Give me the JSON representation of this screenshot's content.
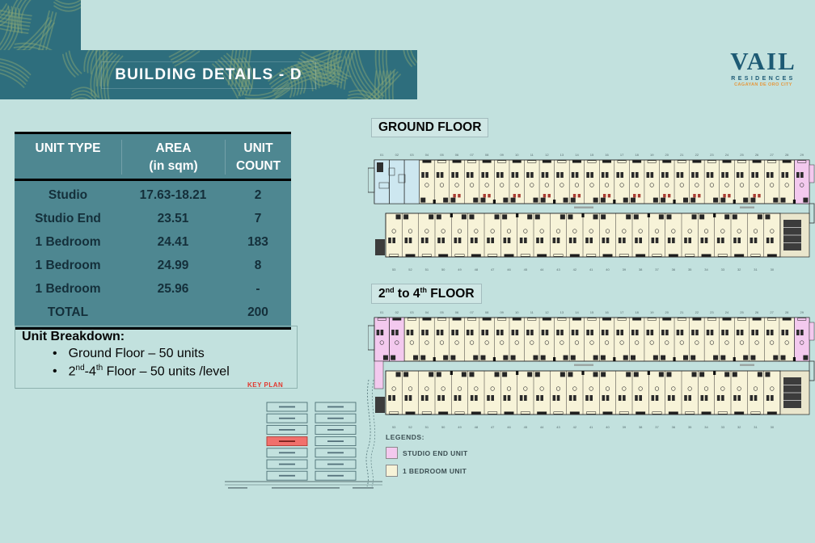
{
  "slide_title": "BUILDING DETAILS - D",
  "logo": {
    "brand": "VAIL",
    "sub": "RESIDENCES",
    "city": "CAGAYAN DE ORO CITY"
  },
  "unit_table": {
    "headers": [
      {
        "line1": "UNIT TYPE",
        "line2": ""
      },
      {
        "line1": "AREA",
        "line2": "(in sqm)"
      },
      {
        "line1": "UNIT",
        "line2": "COUNT"
      }
    ],
    "rows": [
      {
        "type": "Studio",
        "area": "17.63-18.21",
        "count": "2"
      },
      {
        "type": "Studio End",
        "area": "23.51",
        "count": "7"
      },
      {
        "type": "1 Bedroom",
        "area": "24.41",
        "count": "183"
      },
      {
        "type": "1 Bedroom",
        "area": "24.99",
        "count": "8"
      },
      {
        "type": "1 Bedroom",
        "area": "25.96",
        "count": "-"
      },
      {
        "type": "TOTAL",
        "area": "",
        "count": "200"
      }
    ]
  },
  "breakdown": {
    "title": "Unit Breakdown:",
    "bullet1": "Ground Floor – 50 units",
    "bullet2": {
      "p1": "2",
      "s1": "nd",
      "p2": "-4",
      "s2": "th",
      "p3": " Floor – 50 units /level"
    }
  },
  "floors": {
    "ground_label": "GROUND FLOOR",
    "upper_label": {
      "p1": "2",
      "s1": "nd",
      "p2": " to 4",
      "s2": "th",
      "p3": " FLOOR"
    }
  },
  "key_plan": {
    "label": "KEY PLAN",
    "columns": 2,
    "rows_per_column": 7,
    "highlighted": {
      "col": 0,
      "row": 3
    },
    "highlight_color": "#f1706c"
  },
  "legend": {
    "title": "LEGENDS:",
    "items": [
      {
        "label": "STUDIO END UNIT",
        "color": "#f3c9ee"
      },
      {
        "label": "1 BEDROOM UNIT",
        "color": "#f7f3d8"
      }
    ]
  },
  "plan": {
    "top_unit_numbers": [
      "01",
      "02",
      "03",
      "04",
      "05",
      "06",
      "07",
      "08",
      "09",
      "10",
      "11",
      "12",
      "13",
      "14",
      "15",
      "16",
      "17",
      "18",
      "19",
      "20",
      "21",
      "22",
      "23",
      "24",
      "25",
      "26",
      "27",
      "28",
      "29"
    ],
    "bottom_unit_numbers": [
      "53",
      "52",
      "51",
      "50",
      "49",
      "48",
      "47",
      "46",
      "45",
      "44",
      "43",
      "42",
      "41",
      "40",
      "39",
      "38",
      "37",
      "36",
      "35",
      "34",
      "33",
      "32",
      "31",
      "30"
    ],
    "colors": {
      "one_bedroom": "#f7f3d8",
      "studio_end": "#f3c9ee",
      "lobby": "#cde7f0",
      "ground_accent": "#a83b31",
      "banner": "#2e6e7d",
      "banner_stroke": "#84a475",
      "table_bg": "#4e8791",
      "page_bg": "#c2e1de"
    }
  }
}
